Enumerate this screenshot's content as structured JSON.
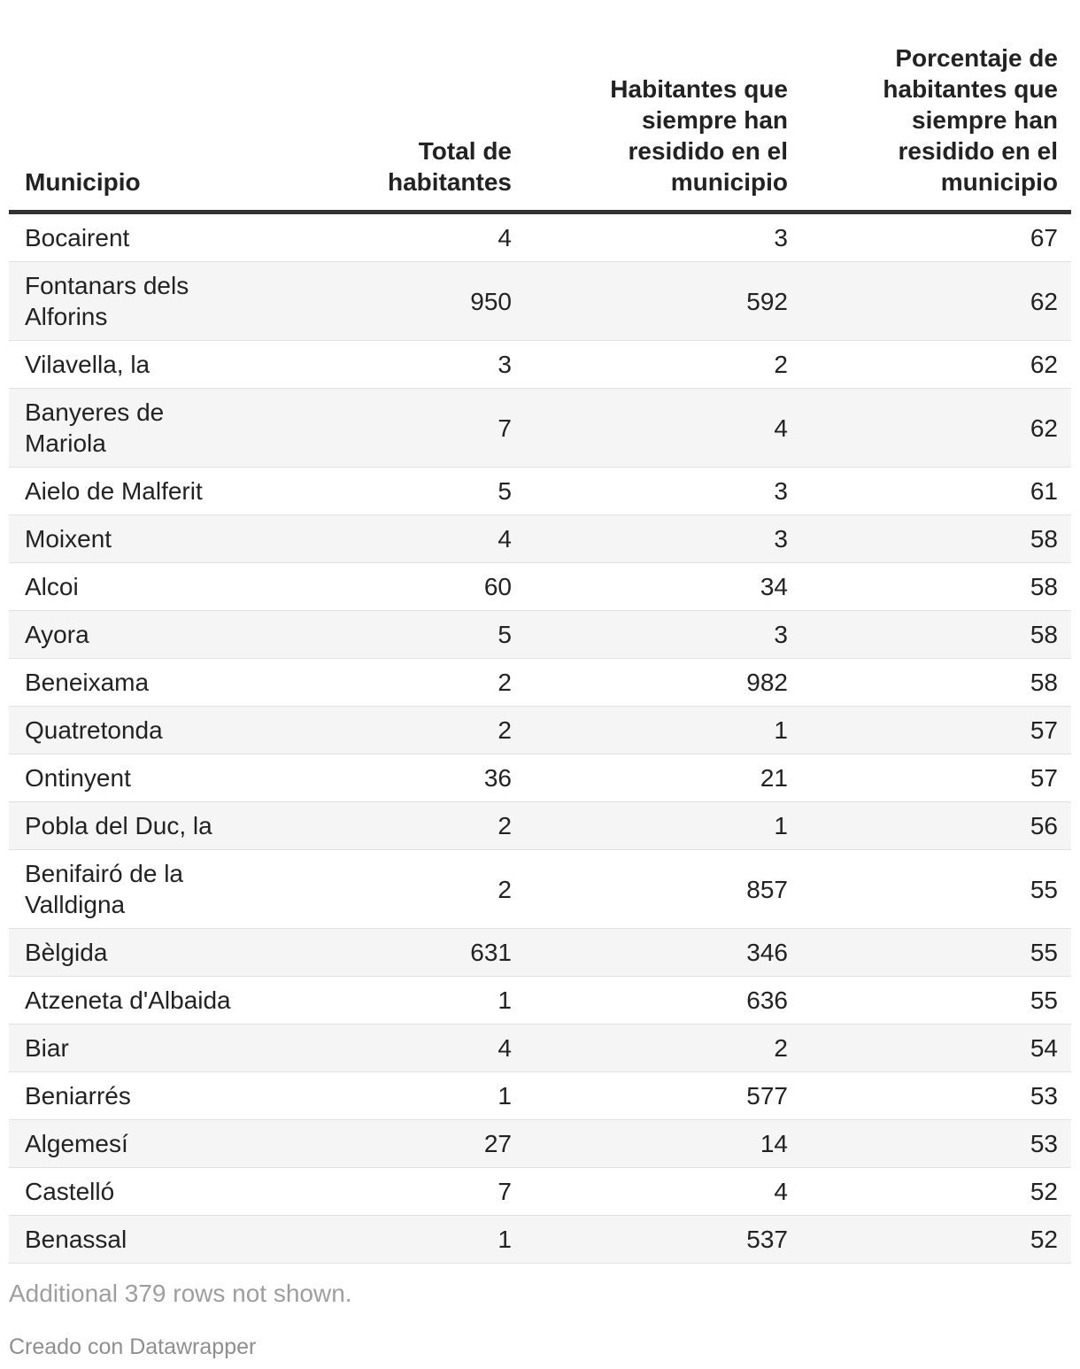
{
  "chart_data": {
    "type": "table",
    "headers": [
      {
        "label": "Municipio",
        "lines": [
          "Municipio"
        ]
      },
      {
        "label": "Total de habitantes",
        "lines": [
          "Total de",
          "habitantes"
        ]
      },
      {
        "label": "Habitantes que siempre han residido en el municipio",
        "lines": [
          "Habitantes que",
          "siempre han",
          "residido en el",
          "municipio"
        ]
      },
      {
        "label": "Porcentaje de habitantes que siempre han residido en el municipio",
        "lines": [
          "Porcentaje de",
          "habitantes que",
          "siempre han",
          "residido en el",
          "municipio"
        ]
      }
    ],
    "rows": [
      {
        "name": "Bocairent",
        "name_lines": [
          "Bocairent"
        ],
        "values": [
          "4",
          "3",
          "67"
        ]
      },
      {
        "name": "Fontanars dels Alforins",
        "name_lines": [
          "Fontanars dels",
          "Alforins"
        ],
        "values": [
          "950",
          "592",
          "62"
        ]
      },
      {
        "name": "Vilavella, la",
        "name_lines": [
          "Vilavella, la"
        ],
        "values": [
          "3",
          "2",
          "62"
        ]
      },
      {
        "name": "Banyeres de Mariola",
        "name_lines": [
          "Banyeres de",
          "Mariola"
        ],
        "values": [
          "7",
          "4",
          "62"
        ]
      },
      {
        "name": "Aielo de Malferit",
        "name_lines": [
          "Aielo de Malferit"
        ],
        "values": [
          "5",
          "3",
          "61"
        ]
      },
      {
        "name": "Moixent",
        "name_lines": [
          "Moixent"
        ],
        "values": [
          "4",
          "3",
          "58"
        ]
      },
      {
        "name": "Alcoi",
        "name_lines": [
          "Alcoi"
        ],
        "values": [
          "60",
          "34",
          "58"
        ]
      },
      {
        "name": "Ayora",
        "name_lines": [
          "Ayora"
        ],
        "values": [
          "5",
          "3",
          "58"
        ]
      },
      {
        "name": "Beneixama",
        "name_lines": [
          "Beneixama"
        ],
        "values": [
          "2",
          "982",
          "58"
        ]
      },
      {
        "name": "Quatretonda",
        "name_lines": [
          "Quatretonda"
        ],
        "values": [
          "2",
          "1",
          "57"
        ]
      },
      {
        "name": "Ontinyent",
        "name_lines": [
          "Ontinyent"
        ],
        "values": [
          "36",
          "21",
          "57"
        ]
      },
      {
        "name": "Pobla del Duc, la",
        "name_lines": [
          "Pobla del Duc, la"
        ],
        "values": [
          "2",
          "1",
          "56"
        ]
      },
      {
        "name": "Benifairó de la Valldigna",
        "name_lines": [
          "Benifairó de la",
          "Valldigna"
        ],
        "values": [
          "2",
          "857",
          "55"
        ]
      },
      {
        "name": "Bèlgida",
        "name_lines": [
          "Bèlgida"
        ],
        "values": [
          "631",
          "346",
          "55"
        ]
      },
      {
        "name": "Atzeneta d'Albaida",
        "name_lines": [
          "Atzeneta d'Albaida"
        ],
        "values": [
          "1",
          "636",
          "55"
        ]
      },
      {
        "name": "Biar",
        "name_lines": [
          "Biar"
        ],
        "values": [
          "4",
          "2",
          "54"
        ]
      },
      {
        "name": "Beniarrés",
        "name_lines": [
          "Beniarrés"
        ],
        "values": [
          "1",
          "577",
          "53"
        ]
      },
      {
        "name": "Algemesí",
        "name_lines": [
          "Algemesí"
        ],
        "values": [
          "27",
          "14",
          "53"
        ]
      },
      {
        "name": "Castelló",
        "name_lines": [
          "Castelló"
        ],
        "values": [
          "7",
          "4",
          "52"
        ]
      },
      {
        "name": "Benassal",
        "name_lines": [
          "Benassal"
        ],
        "values": [
          "1",
          "537",
          "52"
        ]
      }
    ]
  },
  "footer": {
    "note": "Additional 379 rows not shown.",
    "attribution": "Creado con Datawrapper"
  },
  "colors": {
    "text": "#222222",
    "header_rule": "#323232",
    "row_stripe": "#f5f5f5",
    "row_separator": "#e0e0e0",
    "note_text": "#9e9e9e",
    "attribution_text": "#8f8f8f"
  }
}
